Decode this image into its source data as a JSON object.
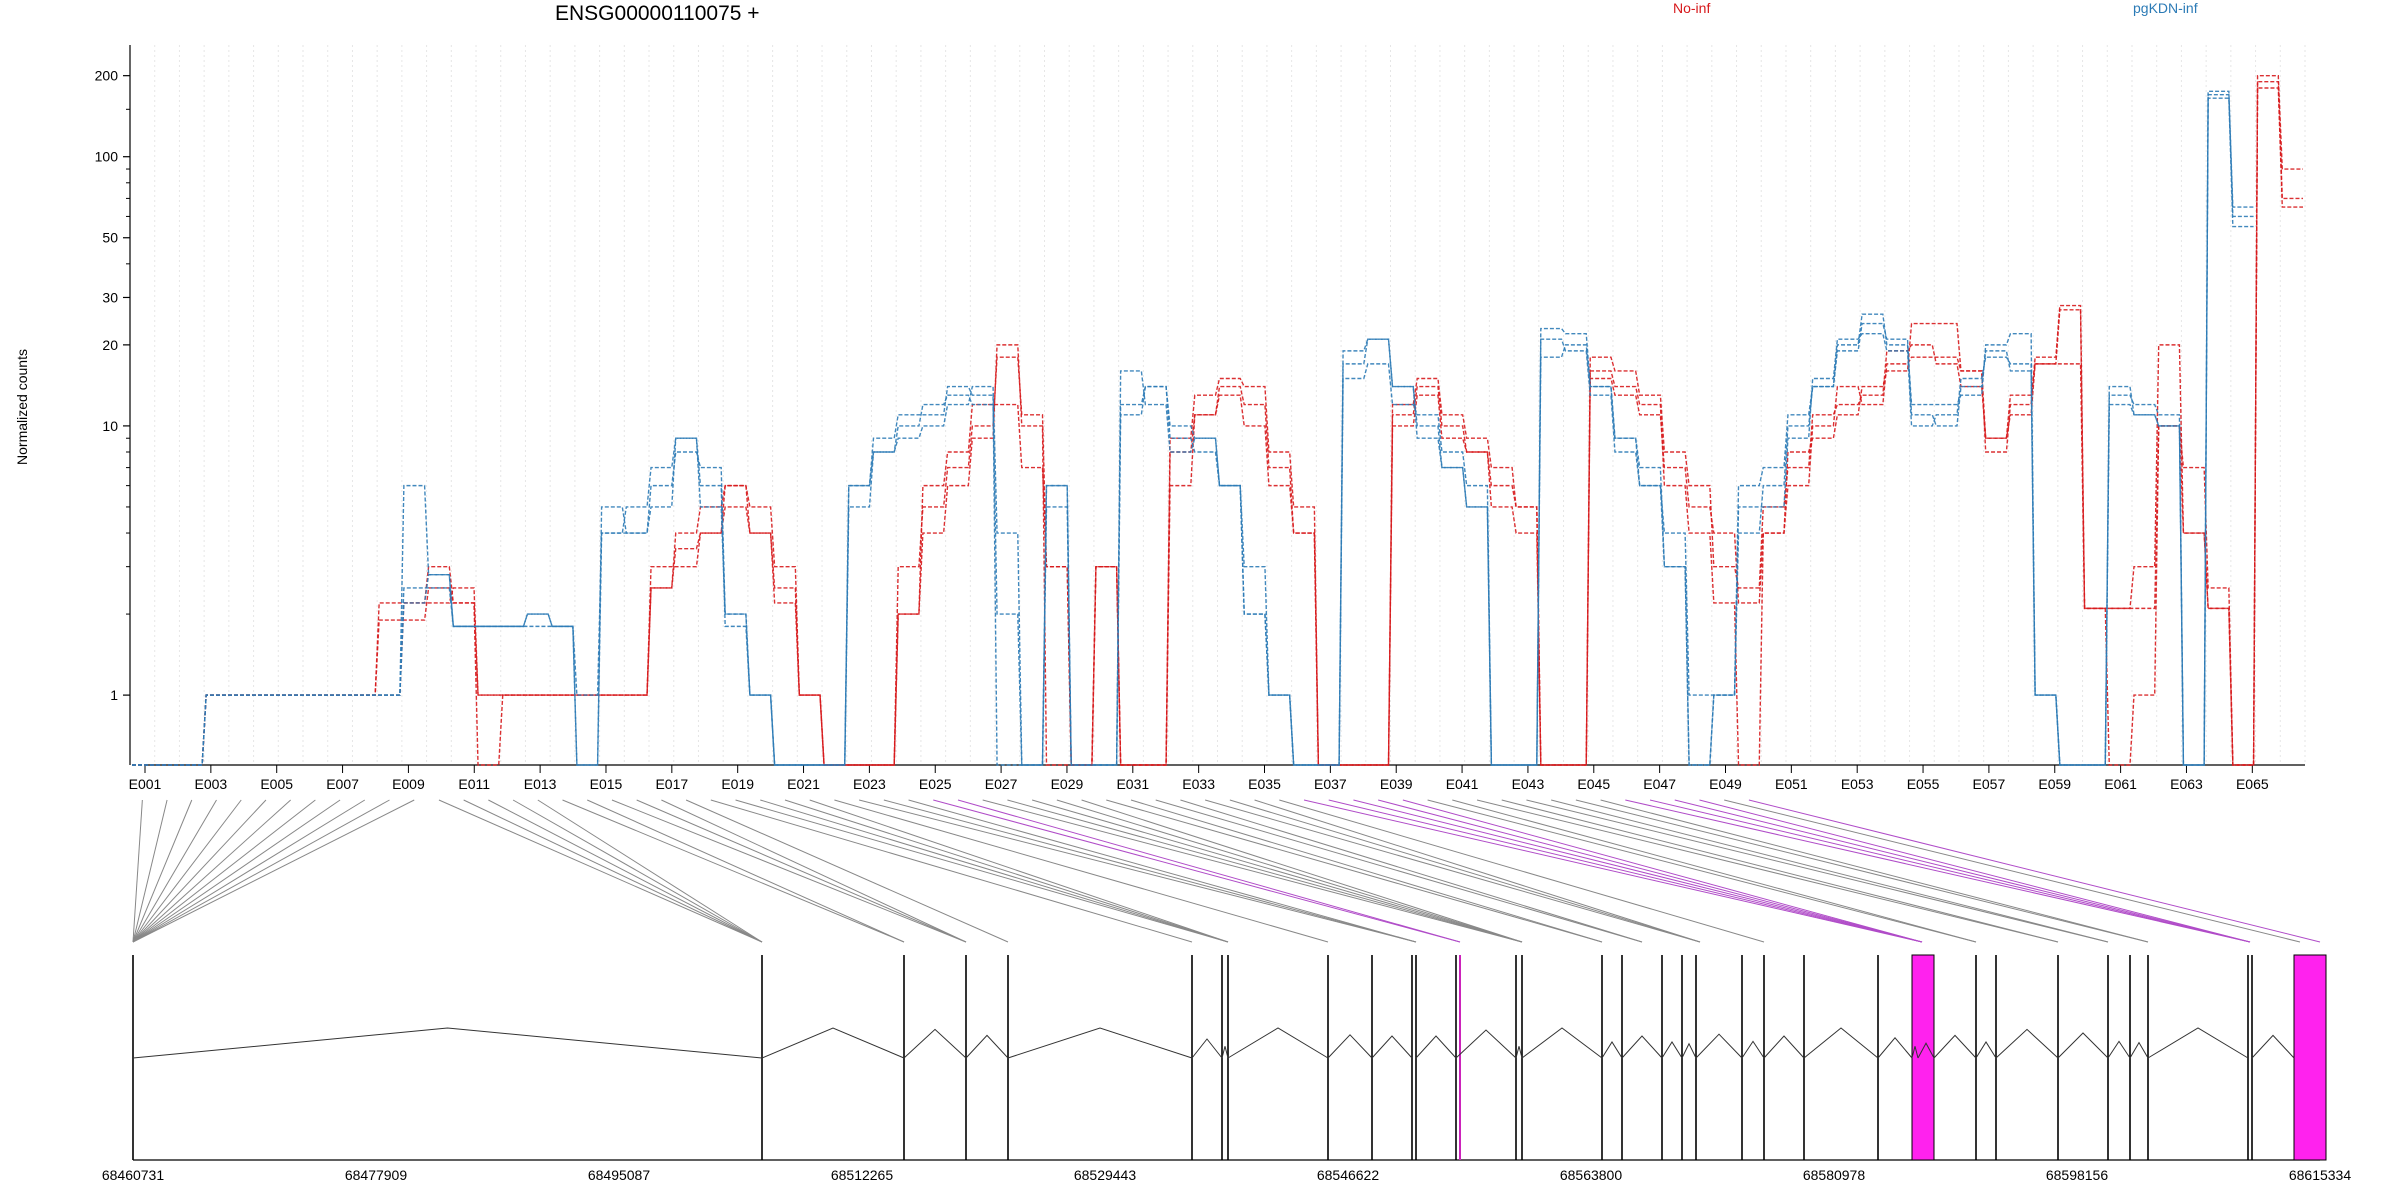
{
  "chart_data": {
    "type": "line",
    "title": "ENSG00000110075 +",
    "ylabel": "Normalized counts",
    "yscale": "log",
    "ylim": [
      0.55,
      260
    ],
    "yticks": [
      {
        "value": 1,
        "label": "1"
      },
      {
        "value": 10,
        "label": "10"
      },
      {
        "value": 20,
        "label": "20"
      },
      {
        "value": 30,
        "label": "30"
      },
      {
        "value": 50,
        "label": "50"
      },
      {
        "value": 100,
        "label": "100"
      },
      {
        "value": 200,
        "label": "200"
      }
    ],
    "exon_labels": [
      "E001",
      "E003",
      "E005",
      "E007",
      "E009",
      "E011",
      "E013",
      "E015",
      "E017",
      "E019",
      "E021",
      "E023",
      "E025",
      "E027",
      "E029",
      "E031",
      "E033",
      "E035",
      "E037",
      "E039",
      "E041",
      "E043",
      "E045",
      "E047",
      "E049",
      "E051",
      "E053",
      "E055",
      "E057",
      "E059",
      "E061",
      "E063",
      "E065"
    ],
    "legend": [
      {
        "name": "No-inf",
        "color": "#d7191c"
      },
      {
        "name": "pgKDN-inf",
        "color": "#2c7bb6"
      }
    ],
    "series": [
      {
        "name": "No-inf",
        "values": [
          0.55,
          0.55,
          0.55,
          1,
          1,
          1,
          1,
          1,
          1,
          1,
          1.9,
          1.9,
          2.5,
          2.2,
          0.55,
          1,
          1,
          1,
          1,
          1,
          1,
          2.5,
          3.5,
          4,
          5,
          4,
          2.2,
          1,
          0.55,
          0.55,
          0.55,
          2,
          4,
          6,
          9,
          20,
          10,
          0.55,
          0.55,
          3,
          0.55,
          0.55,
          8,
          11,
          14,
          12,
          7,
          4,
          0.55,
          0.55,
          0.55,
          10,
          13,
          9,
          8,
          5,
          4,
          0.55,
          0.55,
          16,
          14,
          12,
          6,
          4,
          2.2,
          0.55,
          4,
          6,
          10,
          14,
          12,
          17,
          18,
          18,
          16,
          8,
          12,
          18,
          28,
          2.1,
          2.1,
          3,
          20,
          4,
          2.1,
          0.55,
          200,
          90
        ]
      },
      {
        "name": "No-inf",
        "values": [
          0.55,
          0.55,
          0.55,
          1,
          1,
          1,
          1,
          1,
          1,
          1,
          1,
          2.2,
          3,
          2.2,
          1,
          1,
          1,
          1,
          1,
          1,
          1,
          2.5,
          4,
          5,
          6,
          4,
          2.5,
          1,
          0.55,
          0.55,
          0.55,
          3,
          5,
          7,
          10,
          18,
          11,
          3,
          0.55,
          3,
          0.55,
          0.55,
          9,
          13,
          15,
          14,
          8,
          5,
          0.55,
          0.55,
          0.55,
          11,
          14,
          10,
          8,
          6,
          5,
          0.55,
          0.55,
          18,
          16,
          13,
          8,
          6,
          3,
          2.5,
          5,
          7,
          11,
          12,
          13,
          19,
          20,
          17,
          14,
          9,
          13,
          17,
          27,
          2.1,
          0.55,
          1,
          10,
          7,
          2.5,
          0.55,
          190,
          70
        ]
      },
      {
        "name": "No-inf",
        "values": [
          0.55,
          0.55,
          0.55,
          1,
          1,
          1,
          1,
          1,
          1,
          1,
          2.2,
          2.2,
          2.2,
          2.5,
          1,
          1,
          1,
          1,
          1,
          1,
          1,
          3,
          3,
          4,
          6,
          5,
          3,
          1,
          0.55,
          0.55,
          0.55,
          2,
          6,
          8,
          12,
          12,
          7,
          3,
          0.55,
          3,
          0.55,
          0.55,
          6,
          11,
          13,
          10,
          6,
          4,
          0.55,
          0.55,
          0.55,
          12,
          15,
          11,
          9,
          7,
          5,
          0.55,
          0.55,
          15,
          13,
          11,
          7,
          5,
          4,
          2.2,
          4,
          8,
          9,
          11,
          14,
          16,
          24,
          24,
          16,
          9,
          11,
          17,
          17,
          2.1,
          2.1,
          2.1,
          10,
          4,
          2.1,
          0.55,
          180,
          65
        ]
      },
      {
        "name": "pgKDN-inf",
        "values": [
          0.55,
          0.55,
          0.55,
          1,
          1,
          1,
          1,
          1,
          1,
          1,
          1,
          6,
          2.8,
          1.8,
          1.8,
          1.8,
          2,
          1.8,
          0.55,
          5,
          4,
          6,
          8,
          7,
          2,
          1,
          0.55,
          0.55,
          0.55,
          6,
          9,
          11,
          11,
          14,
          13,
          0.55,
          0.55,
          5,
          0.55,
          0.55,
          12,
          14,
          9,
          8,
          6,
          2,
          1,
          0.55,
          0.55,
          15,
          17,
          12,
          11,
          8,
          6,
          0.55,
          0.55,
          18,
          20,
          14,
          9,
          7,
          3,
          0.55,
          1,
          4,
          6,
          10,
          14,
          20,
          26,
          20,
          12,
          12,
          13,
          20,
          22,
          1,
          0.55,
          0.55,
          13,
          12,
          11,
          0.55,
          170,
          65
        ]
      },
      {
        "name": "pgKDN-inf",
        "values": [
          0.55,
          0.55,
          0.55,
          1,
          1,
          1,
          1,
          1,
          1,
          1,
          1,
          2.5,
          2.5,
          1.8,
          1.8,
          1.8,
          2,
          1.8,
          1,
          4,
          4,
          5,
          9,
          5,
          2,
          1,
          0.55,
          0.55,
          0.55,
          6,
          8,
          10,
          12,
          13,
          12,
          2,
          0.55,
          6,
          0.55,
          0.55,
          16,
          12,
          8,
          9,
          6,
          3,
          1,
          0.55,
          0.55,
          17,
          21,
          14,
          10,
          7,
          5,
          0.55,
          0.55,
          21,
          19,
          13,
          8,
          6,
          4,
          1,
          1,
          5,
          5,
          9,
          15,
          21,
          22,
          19,
          10,
          11,
          15,
          18,
          17,
          1,
          0.55,
          0.55,
          12,
          11,
          10,
          0.55,
          165,
          55
        ]
      },
      {
        "name": "pgKDN-inf",
        "values": [
          0.55,
          0.55,
          0.55,
          1,
          1,
          1,
          1,
          1,
          1,
          1,
          1,
          2.2,
          2.8,
          1.8,
          1.8,
          1.8,
          1.8,
          1.8,
          0.55,
          4,
          5,
          7,
          9,
          6,
          1.8,
          1,
          0.55,
          0.55,
          0.55,
          5,
          8,
          9,
          10,
          12,
          14,
          4,
          0.55,
          6,
          0.55,
          0.55,
          11,
          14,
          10,
          9,
          6,
          2,
          1,
          0.55,
          0.55,
          19,
          21,
          14,
          9,
          7,
          5,
          0.55,
          0.55,
          23,
          22,
          14,
          9,
          6,
          3,
          0.55,
          1,
          6,
          7,
          11,
          14,
          19,
          24,
          21,
          11,
          10,
          14,
          19,
          16,
          1,
          0.55,
          0.55,
          14,
          11,
          10,
          0.55,
          175,
          60
        ]
      }
    ]
  },
  "genome": {
    "coord_labels": [
      "68460731",
      "68477909",
      "68495087",
      "68512265",
      "68529443",
      "68546622",
      "68563800",
      "68580978",
      "68598156",
      "68615334"
    ]
  },
  "colors": {
    "no_inf": "#d7191c",
    "pgkdn_inf": "#2c7bb6",
    "exon_highlight": "#ff22ee",
    "connector": "#777777",
    "connector_highlight": "#b04cc8"
  }
}
